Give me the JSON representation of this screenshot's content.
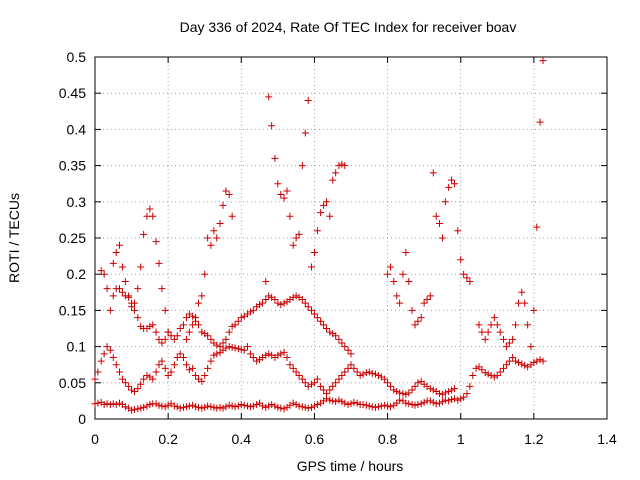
{
  "chart_data": {
    "type": "scatter",
    "title": "Day 336 of 2024, Rate Of TEC Index for receiver boav",
    "xlabel": "GPS time / hours",
    "ylabel": "ROTI / TECUs",
    "xlim": [
      0,
      1.4
    ],
    "ylim": [
      0,
      0.5
    ],
    "xticks": [
      0,
      0.2,
      0.4,
      0.6,
      0.8,
      1,
      1.2,
      1.4
    ],
    "xtick_labels": [
      "0",
      "0.2",
      "0.4",
      "0.6",
      "0.8",
      "1",
      "1.2",
      "1.4"
    ],
    "yticks": [
      0,
      0.05,
      0.1,
      0.15,
      0.2,
      0.25,
      0.3,
      0.35,
      0.4,
      0.45,
      0.5
    ],
    "ytick_labels": [
      "0",
      "0.05",
      "0.1",
      "0.15",
      "0.2",
      "0.25",
      "0.3",
      "0.35",
      "0.4",
      "0.45",
      "0.5"
    ],
    "grid": true,
    "legend": "none",
    "marker": "plus",
    "marker_color": "#cc0000",
    "series": [
      {
        "x": [
          0,
          0.008,
          0.017,
          0.025,
          0.033,
          0.042,
          0.05,
          0.058,
          0.067,
          0.075,
          0.083,
          0.092,
          0.1,
          0.108,
          0.117,
          0.125,
          0.133,
          0.142,
          0.15,
          0.158,
          0.167,
          0.175,
          0.183,
          0.192,
          0.2,
          0.208,
          0.217,
          0.225,
          0.233,
          0.242,
          0.25,
          0.258,
          0.267,
          0.275,
          0.283,
          0.292,
          0.3,
          0.308,
          0.317,
          0.325,
          0.333,
          0.342,
          0.35,
          0.358,
          0.367,
          0.375,
          0.383,
          0.392,
          0.4,
          0.408,
          0.417,
          0.425,
          0.433,
          0.442,
          0.45,
          0.458,
          0.467,
          0.475,
          0.483,
          0.492,
          0.5,
          0.508,
          0.517,
          0.525,
          0.533,
          0.542,
          0.55,
          0.558,
          0.567,
          0.575,
          0.583,
          0.592,
          0.6,
          0.608,
          0.617,
          0.625,
          0.633,
          0.642,
          0.65,
          0.658,
          0.667,
          0.675,
          0.683,
          0.692,
          0.7,
          0.708,
          0.717,
          0.725,
          0.733,
          0.742,
          0.75,
          0.758,
          0.767,
          0.775,
          0.783,
          0.792,
          0.8,
          0.808,
          0.817,
          0.825,
          0.833,
          0.842,
          0.85,
          0.858,
          0.867,
          0.875,
          0.883,
          0.892,
          0.9,
          0.908,
          0.917,
          0.925,
          0.933,
          0.942,
          0.95,
          0.958,
          0.967,
          0.975,
          0.983,
          0.992,
          1,
          1.008,
          1.017,
          1.025,
          1.033,
          1.042,
          1.05,
          1.058,
          1.067,
          1.075,
          1.083,
          1.092,
          1.1,
          1.108,
          1.117,
          1.125,
          1.133,
          1.142,
          1.15,
          1.158,
          1.167,
          1.175,
          1.183,
          1.192,
          1.2,
          1.208,
          1.217,
          1.225
        ],
        "y": [
          0.021,
          0.022,
          0.023,
          0.02,
          0.021,
          0.02,
          0.021,
          0.02,
          0.022,
          0.02,
          0.017,
          0.015,
          0.012,
          0.013,
          0.014,
          0.015,
          0.016,
          0.018,
          0.02,
          0.021,
          0.021,
          0.019,
          0.018,
          0.017,
          0.019,
          0.021,
          0.018,
          0.017,
          0.015,
          0.016,
          0.017,
          0.018,
          0.019,
          0.017,
          0.016,
          0.015,
          0.016,
          0.018,
          0.017,
          0.016,
          0.015,
          0.016,
          0.015,
          0.017,
          0.019,
          0.018,
          0.017,
          0.018,
          0.02,
          0.019,
          0.018,
          0.017,
          0.018,
          0.02,
          0.022,
          0.018,
          0.016,
          0.018,
          0.02,
          0.018,
          0.016,
          0.015,
          0.014,
          0.016,
          0.019,
          0.022,
          0.02,
          0.018,
          0.017,
          0.016,
          0.015,
          0.016,
          0.018,
          0.02,
          0.022,
          0.025,
          0.028,
          0.026,
          0.025,
          0.024,
          0.026,
          0.024,
          0.022,
          0.02,
          0.021,
          0.023,
          0.022,
          0.02,
          0.02,
          0.019,
          0.018,
          0.017,
          0.016,
          0.017,
          0.018,
          0.019,
          0.018,
          0.017,
          0.019,
          0.022,
          0.026,
          0.025,
          0.022,
          0.021,
          0.02,
          0.019,
          0.02,
          0.021,
          0.023,
          0.025,
          0.025,
          0.023,
          0.021,
          0.022,
          0.024,
          0.026,
          0.025,
          0.027,
          0.028,
          0.026,
          0.028,
          0.03,
          0.035,
          0.045,
          0.06,
          0.07,
          0.072,
          0.068,
          0.064,
          0.062,
          0.06,
          0.058,
          0.06,
          0.065,
          0.07,
          0.075,
          0.08,
          0.085,
          0.08,
          0.078,
          0.076,
          0.074,
          0.072,
          0.075,
          0.078,
          0.08,
          0.082,
          0.08
        ]
      },
      {
        "x": [
          0,
          0.008,
          0.017,
          0.025,
          0.033,
          0.042,
          0.05,
          0.058,
          0.067,
          0.075,
          0.083,
          0.092,
          0.1,
          0.108,
          0.117,
          0.125,
          0.133,
          0.142,
          0.15,
          0.158,
          0.167,
          0.175,
          0.183,
          0.192,
          0.2,
          0.208,
          0.217,
          0.225,
          0.233,
          0.242,
          0.25,
          0.258,
          0.267,
          0.275,
          0.283,
          0.292,
          0.3,
          0.308,
          0.317,
          0.325,
          0.333,
          0.342,
          0.35,
          0.358,
          0.367,
          0.375,
          0.383,
          0.392,
          0.4,
          0.408,
          0.417,
          0.425,
          0.433,
          0.442,
          0.45,
          0.458,
          0.467,
          0.475,
          0.483,
          0.492,
          0.5,
          0.508,
          0.517,
          0.525,
          0.533,
          0.542,
          0.55,
          0.558,
          0.567,
          0.575,
          0.583,
          0.592,
          0.6,
          0.608,
          0.617,
          0.625,
          0.633,
          0.642,
          0.65,
          0.658,
          0.667,
          0.675,
          0.683,
          0.692,
          0.7,
          0.708,
          0.717,
          0.725,
          0.733,
          0.742,
          0.75,
          0.758,
          0.767,
          0.775,
          0.783,
          0.792,
          0.8,
          0.808,
          0.817,
          0.825,
          0.833,
          0.842,
          0.85,
          0.858,
          0.867,
          0.875,
          0.883,
          0.892,
          0.9,
          0.908,
          0.917,
          0.925,
          0.933,
          0.942,
          0.95,
          0.958,
          0.967,
          0.975,
          0.983
        ],
        "y": [
          0.055,
          0.065,
          0.08,
          0.09,
          0.1,
          0.095,
          0.085,
          0.075,
          0.065,
          0.055,
          0.05,
          0.045,
          0.04,
          0.038,
          0.042,
          0.048,
          0.055,
          0.06,
          0.058,
          0.055,
          0.065,
          0.075,
          0.08,
          0.07,
          0.06,
          0.065,
          0.075,
          0.085,
          0.09,
          0.085,
          0.075,
          0.068,
          0.07,
          0.06,
          0.055,
          0.052,
          0.06,
          0.07,
          0.08,
          0.088,
          0.09,
          0.092,
          0.095,
          0.098,
          0.1,
          0.099,
          0.098,
          0.097,
          0.096,
          0.095,
          0.1,
          0.09,
          0.085,
          0.08,
          0.082,
          0.085,
          0.088,
          0.09,
          0.088,
          0.085,
          0.088,
          0.09,
          0.092,
          0.085,
          0.075,
          0.07,
          0.065,
          0.06,
          0.055,
          0.05,
          0.045,
          0.048,
          0.05,
          0.055,
          0.045,
          0.04,
          0.035,
          0.04,
          0.045,
          0.05,
          0.055,
          0.06,
          0.065,
          0.07,
          0.075,
          0.07,
          0.065,
          0.06,
          0.062,
          0.064,
          0.065,
          0.063,
          0.062,
          0.06,
          0.058,
          0.055,
          0.05,
          0.045,
          0.04,
          0.038,
          0.036,
          0.035,
          0.034,
          0.036,
          0.04,
          0.045,
          0.05,
          0.052,
          0.048,
          0.045,
          0.042,
          0.04,
          0.038,
          0.035,
          0.034,
          0.036,
          0.038,
          0.04,
          0.042
        ]
      },
      {
        "x": [
          0.017,
          0.025,
          0.033,
          0.042,
          0.05,
          0.058,
          0.067,
          0.075,
          0.083,
          0.092,
          0.1,
          0.108,
          0.117,
          0.125,
          0.133,
          0.142,
          0.15,
          0.158,
          0.167,
          0.175,
          0.183,
          0.192,
          0.2,
          0.208,
          0.217,
          0.225,
          0.233,
          0.242,
          0.25,
          0.258,
          0.267,
          0.275,
          0.283,
          0.292,
          0.3,
          0.308,
          0.317,
          0.325,
          0.333,
          0.342,
          0.35,
          0.358,
          0.367,
          0.375,
          0.383,
          0.392,
          0.4,
          0.408,
          0.417,
          0.425,
          0.433,
          0.442,
          0.45,
          0.458,
          0.467,
          0.475,
          0.483,
          0.492,
          0.5,
          0.508,
          0.517,
          0.525,
          0.533,
          0.542,
          0.55,
          0.558,
          0.567,
          0.575,
          0.583,
          0.592,
          0.6,
          0.608,
          0.617,
          0.625,
          0.633,
          0.642,
          0.65,
          0.658,
          0.667,
          0.675,
          0.683,
          0.692,
          0.7
        ],
        "y": [
          0.205,
          0.2,
          0.18,
          0.15,
          0.17,
          0.18,
          0.18,
          0.175,
          0.17,
          0.168,
          0.16,
          0.15,
          0.14,
          0.128,
          0.125,
          0.125,
          0.128,
          0.13,
          0.12,
          0.11,
          0.105,
          0.11,
          0.12,
          0.115,
          0.11,
          0.115,
          0.125,
          0.13,
          0.14,
          0.145,
          0.142,
          0.14,
          0.13,
          0.12,
          0.118,
          0.115,
          0.11,
          0.105,
          0.102,
          0.1,
          0.105,
          0.11,
          0.12,
          0.128,
          0.13,
          0.135,
          0.14,
          0.142,
          0.145,
          0.148,
          0.15,
          0.155,
          0.158,
          0.16,
          0.165,
          0.17,
          0.168,
          0.165,
          0.16,
          0.158,
          0.16,
          0.162,
          0.165,
          0.168,
          0.17,
          0.168,
          0.165,
          0.16,
          0.155,
          0.15,
          0.145,
          0.14,
          0.135,
          0.13,
          0.125,
          0.12,
          0.118,
          0.115,
          0.11,
          0.105,
          0.1,
          0.095,
          0.09
        ]
      },
      {
        "x": [
          0.05,
          0.058,
          0.067,
          0.075,
          0.083,
          0.092,
          0.1,
          0.108,
          0.117,
          0.125,
          0.133,
          0.142,
          0.15,
          0.158,
          0.167,
          0.175,
          0.183,
          0.192,
          0.2
        ],
        "y": [
          0.215,
          0.23,
          0.24,
          0.21,
          0.19,
          0.17,
          0.155,
          0.16,
          0.18,
          0.21,
          0.255,
          0.28,
          0.29,
          0.28,
          0.245,
          0.215,
          0.18,
          0.15,
          0.12
        ]
      },
      {
        "x": [
          0.25,
          0.258,
          0.267,
          0.275,
          0.283,
          0.292,
          0.3,
          0.308,
          0.317,
          0.325,
          0.333,
          0.342,
          0.35,
          0.358,
          0.367,
          0.375
        ],
        "y": [
          0.11,
          0.12,
          0.13,
          0.135,
          0.16,
          0.17,
          0.2,
          0.25,
          0.24,
          0.26,
          0.25,
          0.27,
          0.295,
          0.315,
          0.31,
          0.28
        ]
      },
      {
        "x": [
          0.467,
          0.475,
          0.483,
          0.492,
          0.5,
          0.508,
          0.517,
          0.525,
          0.533,
          0.542,
          0.55,
          0.558,
          0.567,
          0.575,
          0.583
        ],
        "y": [
          0.19,
          0.445,
          0.405,
          0.36,
          0.325,
          0.31,
          0.305,
          0.315,
          0.28,
          0.24,
          0.25,
          0.255,
          0.35,
          0.395,
          0.44
        ]
      },
      {
        "x": [
          0.592,
          0.6,
          0.608,
          0.617,
          0.625,
          0.633,
          0.642,
          0.65,
          0.658,
          0.667,
          0.675,
          0.683
        ],
        "y": [
          0.21,
          0.23,
          0.26,
          0.285,
          0.295,
          0.3,
          0.28,
          0.33,
          0.34,
          0.35,
          0.352,
          0.35
        ]
      },
      {
        "x": [
          0.8,
          0.808,
          0.817,
          0.825,
          0.833,
          0.842,
          0.85,
          0.858,
          0.867,
          0.875,
          0.883,
          0.892,
          0.9,
          0.908,
          0.917,
          0.925,
          0.933,
          0.942,
          0.95,
          0.958,
          0.967,
          0.975,
          0.983,
          0.992,
          1,
          1.008,
          1.017,
          1.025
        ],
        "y": [
          0.2,
          0.21,
          0.19,
          0.17,
          0.16,
          0.2,
          0.23,
          0.19,
          0.15,
          0.13,
          0.135,
          0.14,
          0.16,
          0.165,
          0.17,
          0.34,
          0.28,
          0.27,
          0.25,
          0.3,
          0.32,
          0.33,
          0.325,
          0.26,
          0.22,
          0.2,
          0.195,
          0.19
        ]
      },
      {
        "x": [
          1.05,
          1.058,
          1.067,
          1.075,
          1.083,
          1.092,
          1.1,
          1.108,
          1.117,
          1.125,
          1.133,
          1.142,
          1.15,
          1.158,
          1.167,
          1.175,
          1.183,
          1.192,
          1.2,
          1.208,
          1.217,
          1.225
        ],
        "y": [
          0.13,
          0.12,
          0.11,
          0.12,
          0.13,
          0.14,
          0.13,
          0.12,
          0.11,
          0.1,
          0.105,
          0.11,
          0.13,
          0.16,
          0.175,
          0.16,
          0.13,
          0.1,
          0.15,
          0.265,
          0.41,
          0.495
        ]
      }
    ]
  }
}
